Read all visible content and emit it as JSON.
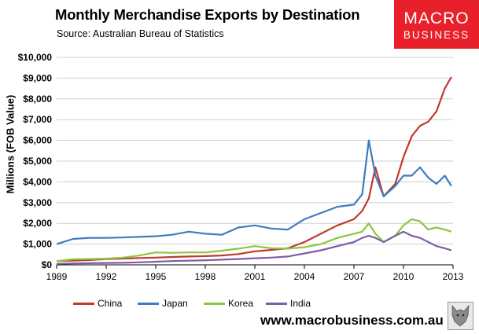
{
  "header": {
    "title": "Monthly Merchandise Exports by Destination",
    "subtitle": "Source: Australian Bureau of Statistics"
  },
  "logo": {
    "line1": "MACRO",
    "line2": "BUSINESS",
    "color": "#e8202a"
  },
  "footer": {
    "url": "www.macrobusiness.com.au"
  },
  "chart_data": {
    "type": "line",
    "title": "Monthly Merchandise Exports by Destination",
    "ylabel": "Millions (FOB Value)",
    "xlabel": "",
    "xlim": [
      1989,
      2013
    ],
    "ylim": [
      0,
      10000
    ],
    "grid": true,
    "legend_position": "bottom",
    "xticks": [
      "1989",
      "1992",
      "1995",
      "1998",
      "2001",
      "2004",
      "2007",
      "2010",
      "2013"
    ],
    "xtick_values": [
      1989,
      1992,
      1995,
      1998,
      2001,
      2004,
      2007,
      2010,
      2013
    ],
    "yticks": [
      "$0",
      "$1,000",
      "$2,000",
      "$3,000",
      "$4,000",
      "$5,000",
      "$6,000",
      "$7,000",
      "$8,000",
      "$9,000",
      "$10,000"
    ],
    "ytick_values": [
      0,
      1000,
      2000,
      3000,
      4000,
      5000,
      6000,
      7000,
      8000,
      9000,
      10000
    ],
    "x": [
      1989,
      1990,
      1991,
      1992,
      1993,
      1994,
      1995,
      1996,
      1997,
      1998,
      1999,
      2000,
      2001,
      2002,
      2003,
      2004,
      2005,
      2006,
      2007,
      2007.5,
      2007.9,
      2008.3,
      2008.8,
      2009.5,
      2010,
      2010.5,
      2011,
      2011.5,
      2012,
      2012.5,
      2012.9
    ],
    "series": [
      {
        "name": "China",
        "color": "#c0392b",
        "values": [
          180,
          200,
          230,
          280,
          300,
          330,
          350,
          380,
          400,
          420,
          450,
          520,
          650,
          720,
          800,
          1100,
          1500,
          1900,
          2200,
          2600,
          3200,
          4700,
          3300,
          3900,
          5200,
          6200,
          6700,
          6900,
          7400,
          8500,
          9050
        ]
      },
      {
        "name": "Japan",
        "color": "#3e7cc1",
        "values": [
          1000,
          1250,
          1300,
          1300,
          1320,
          1350,
          1380,
          1450,
          1600,
          1500,
          1450,
          1800,
          1900,
          1750,
          1700,
          2200,
          2500,
          2800,
          2900,
          3400,
          6000,
          4300,
          3300,
          3800,
          4300,
          4300,
          4700,
          4200,
          3900,
          4300,
          3800
        ]
      },
      {
        "name": "Korea",
        "color": "#8dc63f",
        "values": [
          180,
          270,
          280,
          300,
          350,
          450,
          600,
          580,
          600,
          600,
          680,
          780,
          900,
          800,
          780,
          850,
          1000,
          1300,
          1500,
          1600,
          2000,
          1500,
          1100,
          1400,
          1900,
          2200,
          2100,
          1700,
          1800,
          1700,
          1600
        ]
      },
      {
        "name": "India",
        "color": "#7d5ea8",
        "values": [
          50,
          70,
          80,
          90,
          100,
          120,
          150,
          180,
          200,
          220,
          250,
          280,
          320,
          350,
          400,
          550,
          700,
          900,
          1100,
          1300,
          1400,
          1300,
          1100,
          1400,
          1600,
          1400,
          1300,
          1100,
          900,
          800,
          700
        ]
      }
    ]
  }
}
